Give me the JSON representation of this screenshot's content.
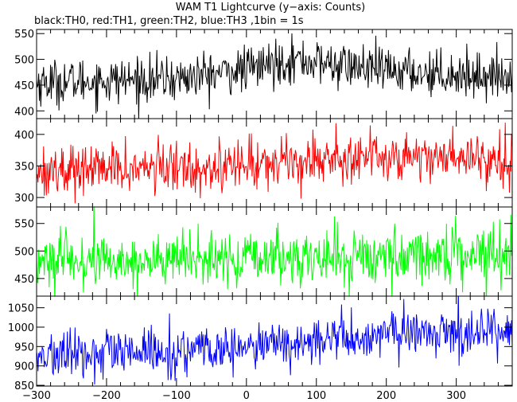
{
  "title": "WAM T1 Lightcurve (y−axis: Counts)",
  "subtitle": "black:TH0, red:TH1, green:TH2, blue:TH3 ,1bin = 1s",
  "chart_data": [
    {
      "type": "line",
      "series": [
        {
          "color": "#000000"
        }
      ],
      "xlim": [
        -300,
        380
      ],
      "ylim": [
        385,
        558
      ],
      "yticks": [
        400,
        450,
        500,
        550
      ],
      "ytick_labels": [
        "400",
        "450",
        "500",
        "550"
      ],
      "trend": {
        "x": [
          -300,
          -100,
          0,
          60,
          200,
          380
        ],
        "y": [
          455,
          462,
          480,
          500,
          478,
          466
        ]
      },
      "noise_sd": 22
    },
    {
      "type": "line",
      "series": [
        {
          "color": "#ff0000"
        }
      ],
      "xlim": [
        -300,
        380
      ],
      "ylim": [
        285,
        425
      ],
      "yticks": [
        300,
        350,
        400
      ],
      "ytick_labels": [
        "300",
        "350",
        "400"
      ],
      "trend": {
        "x": [
          -300,
          -100,
          0,
          100,
          200,
          380
        ],
        "y": [
          343,
          347,
          352,
          362,
          366,
          363
        ]
      },
      "noise_sd": 20
    },
    {
      "type": "line",
      "series": [
        {
          "color": "#00ff00"
        }
      ],
      "xlim": [
        -300,
        380
      ],
      "ylim": [
        418,
        580
      ],
      "yticks": [
        450,
        500,
        550
      ],
      "ytick_labels": [
        "450",
        "500",
        "550"
      ],
      "trend": {
        "x": [
          -300,
          0,
          200,
          380
        ],
        "y": [
          480,
          485,
          490,
          500
        ]
      },
      "noise_sd": 25
    },
    {
      "type": "line",
      "series": [
        {
          "color": "#0000ff"
        }
      ],
      "xlim": [
        -300,
        380
      ],
      "ylim": [
        848,
        1080
      ],
      "yticks": [
        850,
        900,
        950,
        1000,
        1050
      ],
      "ytick_labels": [
        "850",
        "900",
        "950",
        "1000",
        "1050"
      ],
      "xticks": [
        -300,
        -200,
        -100,
        0,
        100,
        200,
        300
      ],
      "xtick_labels": [
        "−300",
        "−200",
        "−100",
        "0",
        "100",
        "200",
        "300"
      ],
      "trend": {
        "x": [
          -300,
          -100,
          0,
          100,
          200,
          380
        ],
        "y": [
          925,
          935,
          945,
          965,
          980,
          995
        ]
      },
      "noise_sd": 30
    }
  ]
}
